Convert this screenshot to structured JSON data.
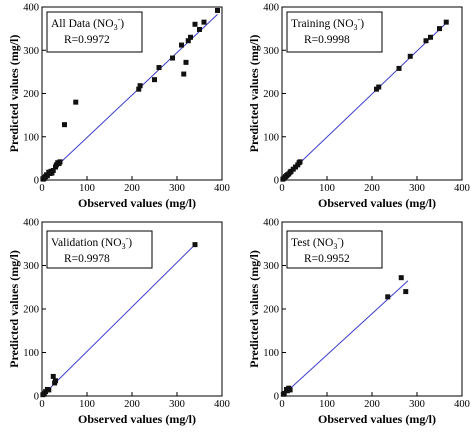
{
  "figure": {
    "background": "#ffffff",
    "fit_line_color": "#3c3ccc",
    "marker_color": "#111111"
  },
  "chart_data": [
    {
      "type": "scatter",
      "xlabel": "Observed values (mg/l)",
      "ylabel": "Predicted values (mg/l)",
      "xlim": [
        0,
        400
      ],
      "ylim": [
        0,
        400
      ],
      "xticks": [
        "0",
        "100",
        "200",
        "300",
        "400"
      ],
      "yticks": [
        "0",
        "100",
        "200",
        "300",
        "400"
      ],
      "legend": {
        "label": "All Data (NO",
        "sub": "3",
        "sup": "-",
        "close": ")",
        "r": "R=0.9972",
        "position": "top-left"
      },
      "fit_line": {
        "x": [
          0,
          390
        ],
        "y": [
          0,
          383
        ]
      },
      "points": {
        "x": [
          2,
          3,
          5,
          6,
          8,
          10,
          12,
          15,
          18,
          20,
          22,
          25,
          30,
          32,
          35,
          38,
          40,
          50,
          75,
          215,
          218,
          250,
          260,
          290,
          310,
          315,
          320,
          325,
          330,
          340,
          350,
          360,
          390
        ],
        "y": [
          3,
          2,
          6,
          4,
          8,
          12,
          10,
          18,
          15,
          20,
          16,
          22,
          30,
          35,
          40,
          38,
          42,
          128,
          180,
          210,
          218,
          232,
          260,
          282,
          312,
          245,
          272,
          322,
          330,
          360,
          348,
          365,
          392
        ]
      }
    },
    {
      "type": "scatter",
      "xlabel": "Observed values (mg/l)",
      "ylabel": "Predicted values (mg/l)",
      "xlim": [
        0,
        400
      ],
      "ylim": [
        0,
        400
      ],
      "xticks": [
        "0",
        "100",
        "200",
        "300",
        "400"
      ],
      "yticks": [
        "0",
        "100",
        "200",
        "300",
        "400"
      ],
      "legend": {
        "label": "Training (NO",
        "sub": "3",
        "sup": "-",
        "close": ")",
        "r": "R=0.9998",
        "position": "top-left"
      },
      "fit_line": {
        "x": [
          0,
          370
        ],
        "y": [
          0,
          368
        ]
      },
      "points": {
        "x": [
          2,
          4,
          6,
          8,
          10,
          12,
          15,
          18,
          20,
          25,
          30,
          35,
          38,
          40,
          210,
          215,
          260,
          285,
          320,
          330,
          350,
          365
        ],
        "y": [
          2,
          4,
          5,
          8,
          10,
          12,
          14,
          18,
          20,
          25,
          30,
          35,
          40,
          42,
          210,
          215,
          258,
          286,
          322,
          330,
          350,
          365
        ]
      }
    },
    {
      "type": "scatter",
      "xlabel": "Observed values (mg/l)",
      "ylabel": "Predicted values (mg/l)",
      "xlim": [
        0,
        400
      ],
      "ylim": [
        0,
        400
      ],
      "xticks": [
        "0",
        "100",
        "200",
        "300",
        "400"
      ],
      "yticks": [
        "0",
        "100",
        "200",
        "300",
        "400"
      ],
      "legend": {
        "label": "Validation (NO",
        "sub": "3",
        "sup": "-",
        "close": ")",
        "r": "R=0.9978",
        "position": "top-left"
      },
      "fit_line": {
        "x": [
          0,
          340
        ],
        "y": [
          0,
          348
        ]
      },
      "points": {
        "x": [
          2,
          5,
          8,
          12,
          15,
          25,
          28,
          30,
          340
        ],
        "y": [
          3,
          6,
          10,
          15,
          14,
          45,
          30,
          35,
          348
        ]
      }
    },
    {
      "type": "scatter",
      "xlabel": "Observed values (mg/l)",
      "ylabel": "Predicted values (mg/l)",
      "xlim": [
        0,
        400
      ],
      "ylim": [
        0,
        400
      ],
      "xticks": [
        "0",
        "100",
        "200",
        "300",
        "400"
      ],
      "yticks": [
        "0",
        "100",
        "200",
        "300",
        "400"
      ],
      "legend": {
        "label": "Test (NO",
        "sub": "3",
        "sup": "-",
        "close": ")",
        "r": "R=0.9952",
        "position": "top-left"
      },
      "fit_line": {
        "x": [
          0,
          280
        ],
        "y": [
          0,
          265
        ]
      },
      "points": {
        "x": [
          3,
          5,
          10,
          12,
          15,
          18,
          235,
          265,
          275
        ],
        "y": [
          4,
          6,
          15,
          12,
          18,
          14,
          228,
          272,
          240
        ]
      }
    }
  ]
}
